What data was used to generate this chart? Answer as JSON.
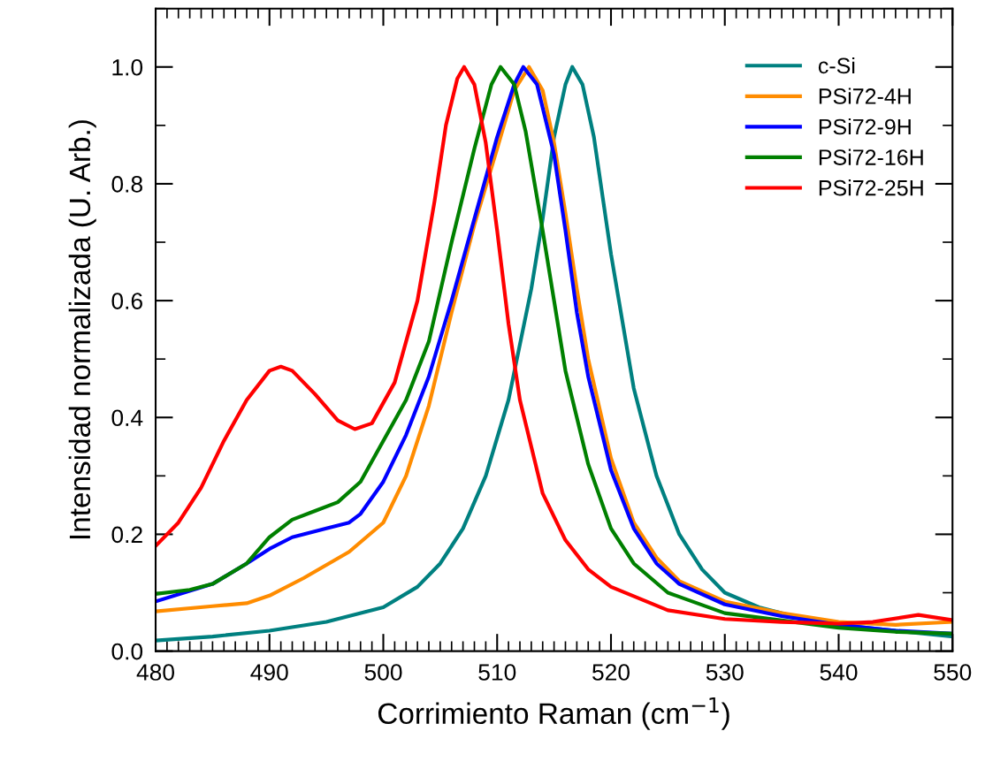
{
  "chart_data": {
    "type": "line",
    "xlabel": "Corrimiento Raman (cm$^{−1}$)",
    "ylabel": "Intensidad normalizada (U. Arb.)",
    "xlim": [
      480,
      550
    ],
    "ylim": [
      0,
      1.1
    ],
    "xticks": [
      480,
      {
        "value": 481,
        "label": null
      },
      {
        "value": 482,
        "label": null
      },
      {
        "value": 483,
        "label": null
      },
      {
        "value": 484,
        "label": null
      },
      {
        "value": 485,
        "label": null
      },
      {
        "value": 486,
        "label": null
      },
      {
        "value": 487,
        "label": null
      },
      {
        "value": 488,
        "label": null
      },
      {
        "value": 489,
        "label": null
      },
      490,
      {
        "value": 491,
        "label": null
      },
      {
        "value": 492,
        "label": null
      },
      {
        "value": 493,
        "label": null
      },
      {
        "value": 494,
        "label": null
      },
      {
        "value": 495,
        "label": null
      },
      {
        "value": 496,
        "label": null
      },
      {
        "value": 497,
        "label": null
      },
      {
        "value": 498,
        "label": null
      },
      {
        "value": 499,
        "label": null
      },
      500,
      {
        "value": 501,
        "label": null
      },
      {
        "value": 502,
        "label": null
      },
      {
        "value": 503,
        "label": null
      },
      {
        "value": 504,
        "label": null
      },
      {
        "value": 505,
        "label": null
      },
      {
        "value": 506,
        "label": null
      },
      {
        "value": 507,
        "label": null
      },
      {
        "value": 508,
        "label": null
      },
      {
        "value": 509,
        "label": null
      },
      510,
      {
        "value": 511,
        "label": null
      },
      {
        "value": 512,
        "label": null
      },
      {
        "value": 513,
        "label": null
      },
      {
        "value": 514,
        "label": null
      },
      {
        "value": 515,
        "label": null
      },
      {
        "value": 516,
        "label": null
      },
      {
        "value": 517,
        "label": null
      },
      {
        "value": 518,
        "label": null
      },
      {
        "value": 519,
        "label": null
      },
      520,
      {
        "value": 521,
        "label": null
      },
      {
        "value": 522,
        "label": null
      },
      {
        "value": 523,
        "label": null
      },
      {
        "value": 524,
        "label": null
      },
      {
        "value": 525,
        "label": null
      },
      {
        "value": 526,
        "label": null
      },
      {
        "value": 527,
        "label": null
      },
      {
        "value": 528,
        "label": null
      },
      {
        "value": 529,
        "label": null
      },
      530,
      {
        "value": 531,
        "label": null
      },
      {
        "value": 532,
        "label": null
      },
      {
        "value": 533,
        "label": null
      },
      {
        "value": 534,
        "label": null
      },
      {
        "value": 535,
        "label": null
      },
      {
        "value": 536,
        "label": null
      },
      {
        "value": 537,
        "label": null
      },
      {
        "value": 538,
        "label": null
      },
      {
        "value": 539,
        "label": null
      },
      540,
      {
        "value": 541,
        "label": null
      },
      {
        "value": 542,
        "label": null
      },
      {
        "value": 543,
        "label": null
      },
      {
        "value": 544,
        "label": null
      },
      {
        "value": 545,
        "label": null
      },
      {
        "value": 546,
        "label": null
      },
      {
        "value": 547,
        "label": null
      },
      {
        "value": 548,
        "label": null
      },
      {
        "value": 549,
        "label": null
      },
      550
    ],
    "yticks": [
      {
        "value": 0,
        "label": "0.0"
      },
      {
        "value": 0.1,
        "label": null
      },
      {
        "value": 0.2,
        "label": "0.2"
      },
      {
        "value": 0.3,
        "label": null
      },
      {
        "value": 0.4,
        "label": "0.4"
      },
      {
        "value": 0.5,
        "label": null
      },
      {
        "value": 0.6,
        "label": "0.6"
      },
      {
        "value": 0.7,
        "label": null
      },
      {
        "value": 0.8,
        "label": "0.8"
      },
      {
        "value": 0.9,
        "label": null
      },
      {
        "value": 1.0,
        "label": "1.0"
      },
      {
        "value": 1.1,
        "label": null
      }
    ],
    "grid": false,
    "legend": "top right",
    "marker": "none",
    "line_style": "solid",
    "series": [
      {
        "name": "c-Si",
        "color": "#008080",
        "x": [
          480,
          485,
          490,
          495,
          500,
          503,
          505,
          507,
          509,
          511,
          513,
          514,
          515,
          516,
          516.6,
          517.5,
          518.5,
          520,
          522,
          524,
          526,
          528,
          530,
          533,
          536,
          540,
          545,
          550
        ],
        "values": [
          0.018,
          0.025,
          0.035,
          0.05,
          0.075,
          0.11,
          0.15,
          0.21,
          0.3,
          0.43,
          0.62,
          0.74,
          0.88,
          0.97,
          1.0,
          0.97,
          0.88,
          0.68,
          0.45,
          0.3,
          0.2,
          0.14,
          0.1,
          0.075,
          0.06,
          0.045,
          0.035,
          0.025
        ]
      },
      {
        "name": "PSi72-4H",
        "color": "#ff8c00",
        "x": [
          480,
          485,
          488,
          490,
          493,
          497,
          500,
          502,
          504,
          506,
          508,
          510,
          511.5,
          512.8,
          514,
          515,
          516,
          517,
          518,
          520,
          522,
          524,
          526,
          530,
          535,
          540,
          545,
          550
        ],
        "values": [
          0.068,
          0.077,
          0.082,
          0.095,
          0.125,
          0.17,
          0.22,
          0.3,
          0.42,
          0.58,
          0.73,
          0.86,
          0.96,
          1.0,
          0.96,
          0.87,
          0.75,
          0.62,
          0.5,
          0.33,
          0.22,
          0.16,
          0.12,
          0.085,
          0.065,
          0.05,
          0.045,
          0.05
        ]
      },
      {
        "name": "PSi72-9H",
        "color": "#0000ff",
        "x": [
          480,
          485,
          488,
          490,
          492,
          495,
          497,
          498,
          500,
          502,
          504,
          506,
          508,
          510,
          511.5,
          512.3,
          513.5,
          515,
          516,
          517,
          518,
          520,
          522,
          524,
          526,
          530,
          535,
          540,
          545,
          550
        ],
        "values": [
          0.085,
          0.115,
          0.15,
          0.175,
          0.195,
          0.21,
          0.22,
          0.235,
          0.29,
          0.37,
          0.47,
          0.6,
          0.74,
          0.88,
          0.97,
          1.0,
          0.97,
          0.85,
          0.72,
          0.58,
          0.47,
          0.31,
          0.21,
          0.15,
          0.115,
          0.08,
          0.06,
          0.045,
          0.035,
          0.03
        ]
      },
      {
        "name": "PSi72-16H",
        "color": "#008000",
        "x": [
          480,
          483,
          485,
          488,
          490,
          492,
          494,
          496,
          498,
          500,
          502,
          504,
          506,
          508,
          509.5,
          510.3,
          511.5,
          512.5,
          514,
          515,
          516,
          518,
          520,
          522,
          525,
          530,
          540,
          545,
          550
        ],
        "values": [
          0.098,
          0.105,
          0.115,
          0.15,
          0.195,
          0.225,
          0.24,
          0.255,
          0.29,
          0.36,
          0.43,
          0.53,
          0.7,
          0.86,
          0.97,
          1.0,
          0.97,
          0.89,
          0.72,
          0.6,
          0.48,
          0.32,
          0.21,
          0.15,
          0.1,
          0.065,
          0.04,
          0.033,
          0.03
        ]
      },
      {
        "name": "PSi72-25H",
        "color": "#ff0000",
        "x": [
          480,
          482,
          484,
          486,
          488,
          490,
          491,
          492,
          494,
          496,
          497.5,
          499,
          501,
          503,
          504.5,
          505.5,
          506.5,
          507.1,
          508,
          509,
          510,
          511,
          512,
          514,
          516,
          518,
          520,
          525,
          530,
          535,
          540,
          543,
          547,
          550
        ],
        "values": [
          0.18,
          0.22,
          0.28,
          0.36,
          0.43,
          0.48,
          0.487,
          0.48,
          0.44,
          0.395,
          0.38,
          0.39,
          0.46,
          0.6,
          0.77,
          0.9,
          0.98,
          1.0,
          0.97,
          0.87,
          0.72,
          0.56,
          0.43,
          0.27,
          0.19,
          0.14,
          0.11,
          0.07,
          0.055,
          0.05,
          0.047,
          0.05,
          0.062,
          0.053
        ]
      }
    ]
  }
}
